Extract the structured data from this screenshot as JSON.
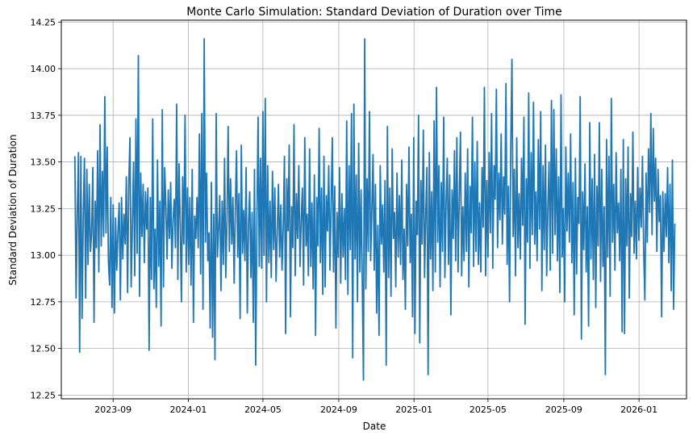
{
  "chart_data": {
    "type": "line",
    "title": "Monte Carlo Simulation: Standard Deviation of Duration over Time",
    "xlabel": "Date",
    "ylabel": "Standard Deviation of Duration",
    "x_ticks": [
      "2023-09",
      "2024-01",
      "2024-05",
      "2024-09",
      "2025-01",
      "2025-05",
      "2025-09",
      "2026-01"
    ],
    "y_ticks": [
      "12.25",
      "12.50",
      "12.75",
      "13.00",
      "13.25",
      "13.50",
      "13.75",
      "14.00",
      "14.25"
    ],
    "xlim": [
      "2023-06-09",
      "2026-03-19"
    ],
    "ylim": [
      12.23,
      14.26
    ],
    "x_start": "2023-07-01",
    "x_end": "2026-02-28",
    "grid": true,
    "line_color": "#1f77b4",
    "values": [
      13.53,
      12.77,
      13.22,
      13.55,
      12.48,
      13.53,
      12.66,
      13.22,
      13.52,
      12.77,
      13.46,
      12.95,
      13.38,
      13.02,
      13.12,
      13.47,
      12.64,
      13.29,
      13.04,
      13.56,
      12.91,
      13.7,
      13.05,
      13.45,
      13.1,
      13.85,
      13.12,
      13.58,
      12.97,
      12.84,
      13.31,
      12.72,
      13.27,
      12.69,
      13.2,
      12.92,
      13.13,
      13.28,
      12.76,
      13.31,
      12.98,
      13.22,
      13.06,
      13.42,
      12.8,
      13.38,
      13.63,
      12.83,
      13.15,
      13.5,
      12.89,
      13.73,
      13.01,
      14.07,
      12.78,
      13.44,
      13.1,
      13.38,
      12.96,
      13.34,
      13.14,
      13.36,
      12.49,
      13.31,
      12.87,
      13.73,
      12.82,
      13.14,
      12.72,
      13.51,
      12.94,
      13.29,
      12.62,
      13.78,
      12.83,
      13.47,
      13.26,
      12.98,
      13.35,
      13.09,
      13.39,
      12.93,
      13.19,
      13.3,
      13.04,
      13.81,
      12.87,
      13.49,
      13.16,
      12.75,
      13.42,
      13.06,
      13.75,
      12.91,
      13.36,
      12.95,
      13.31,
      12.84,
      13.46,
      12.64,
      13.21,
      13.09,
      13.31,
      13.04,
      13.65,
      12.9,
      13.76,
      12.71,
      14.16,
      13.07,
      13.44,
      12.97,
      13.12,
      12.61,
      13.39,
      12.56,
      13.22,
      12.44,
      13.76,
      12.99,
      13.14,
      13.32,
      12.81,
      13.29,
      12.95,
      13.52,
      12.88,
      13.18,
      13.69,
      13.02,
      13.41,
      13.06,
      13.31,
      12.85,
      13.25,
      13.56,
      12.99,
      13.33,
      12.66,
      13.59,
      13.01,
      13.24,
      12.97,
      13.47,
      12.69,
      13.17,
      13.34,
      12.88,
      13.23,
      12.64,
      13.46,
      12.41,
      13.17,
      13.74,
      12.94,
      13.52,
      12.93,
      13.77,
      13.0,
      13.84,
      12.75,
      13.48,
      12.96,
      13.29,
      12.88,
      13.45,
      13.03,
      13.36,
      12.86,
      13.12,
      13.38,
      12.99,
      13.27,
      12.92,
      13.15,
      13.53,
      12.58,
      13.41,
      13.13,
      13.59,
      12.67,
      13.26,
      13.04,
      13.7,
      12.89,
      13.33,
      13.09,
      13.48,
      12.94,
      13.19,
      13.36,
      12.84,
      13.63,
      13.05,
      13.22,
      12.89,
      13.57,
      12.94,
      13.28,
      12.82,
      13.43,
      12.57,
      13.31,
      13.05,
      13.68,
      12.96,
      13.36,
      12.79,
      13.53,
      12.83,
      13.32,
      13.13,
      13.48,
      12.92,
      13.28,
      13.63,
      12.91,
      13.37,
      12.61,
      13.23,
      12.99,
      13.47,
      12.85,
      13.33,
      12.99,
      13.25,
      12.87,
      13.72,
      12.79,
      13.48,
      13.03,
      13.76,
      12.45,
      13.81,
      12.98,
      13.43,
      12.75,
      13.6,
      12.91,
      13.35,
      12.86,
      12.33,
      14.16,
      12.82,
      13.41,
      13.02,
      13.77,
      12.97,
      13.24,
      13.54,
      12.92,
      13.38,
      12.69,
      13.16,
      12.57,
      13.48,
      13.06,
      13.27,
      12.91,
      13.4,
      12.41,
      13.69,
      12.88,
      13.36,
      12.78,
      13.57,
      13.09,
      13.23,
      12.83,
      13.44,
      12.99,
      13.32,
      12.95,
      13.51,
      12.87,
      13.14,
      12.71,
      13.38,
      13.05,
      13.58,
      12.96,
      13.22,
      12.67,
      13.63,
      12.58,
      13.29,
      13.11,
      13.75,
      12.53,
      13.4,
      13.06,
      13.67,
      12.88,
      13.21,
      13.47,
      12.36,
      13.55,
      12.98,
      13.34,
      12.81,
      13.72,
      12.91,
      13.9,
      13.07,
      13.48,
      12.83,
      13.39,
      13.02,
      13.74,
      12.88,
      13.28,
      13.52,
      12.95,
      13.43,
      12.68,
      13.35,
      13.09,
      13.56,
      12.97,
      13.63,
      12.91,
      13.31,
      13.66,
      12.89,
      13.26,
      12.97,
      13.44,
      13.02,
      13.57,
      12.83,
      13.37,
      13.12,
      13.74,
      12.94,
      13.5,
      13.02,
      13.61,
      12.95,
      13.28,
      12.91,
      13.47,
      13.15,
      13.9,
      12.89,
      13.4,
      12.99,
      13.55,
      13.12,
      13.76,
      12.93,
      13.48,
      13.3,
      13.89,
      13.04,
      13.44,
      13.19,
      13.65,
      13.06,
      13.42,
      13.22,
      13.92,
      12.95,
      13.37,
      12.75,
      13.57,
      14.05,
      13.1,
      13.46,
      12.89,
      13.63,
      13.04,
      13.33,
      12.98,
      13.52,
      13.16,
      13.74,
      12.63,
      13.41,
      13.07,
      13.87,
      12.93,
      13.55,
      13.11,
      13.82,
      13.06,
      13.34,
      12.97,
      13.62,
      13.14,
      13.77,
      12.81,
      13.48,
      13.03,
      13.59,
      12.89,
      13.26,
      13.5,
      12.92,
      13.83,
      13.01,
      13.78,
      13.11,
      13.57,
      12.97,
      13.42,
      12.8,
      13.86,
      12.99,
      13.25,
      12.75,
      13.58,
      13.13,
      13.44,
      13.07,
      13.65,
      12.96,
      13.39,
      12.68,
      13.52,
      12.9,
      13.31,
      13.17,
      13.85,
      12.55,
      13.34,
      13.03,
      13.49,
      12.91,
      13.26,
      12.62,
      13.71,
      12.98,
      13.41,
      12.87,
      13.54,
      12.72,
      13.37,
      13.05,
      13.71,
      12.86,
      13.46,
      12.94,
      13.26,
      12.36,
      13.62,
      12.99,
      13.53,
      12.78,
      13.84,
      13.07,
      13.38,
      12.92,
      13.55,
      13.12,
      13.28,
      12.97,
      13.46,
      12.59,
      13.62,
      12.58,
      13.41,
      13.05,
      13.58,
      12.77,
      13.33,
      13.1,
      13.66,
      13.01,
      13.29,
      12.98,
      13.47,
      13.08,
      13.36,
      13.15,
      13.53,
      13.03,
      12.76,
      13.44,
      13.07,
      13.57,
      13.23,
      13.76,
      13.11,
      13.68,
      13.29,
      13.52,
      13.02,
      13.46,
      13.18,
      13.32,
      12.67,
      13.34,
      13.02,
      13.33,
      13.1,
      13.47,
      12.96,
      13.38,
      12.81,
      13.51,
      12.71,
      13.17
    ]
  }
}
